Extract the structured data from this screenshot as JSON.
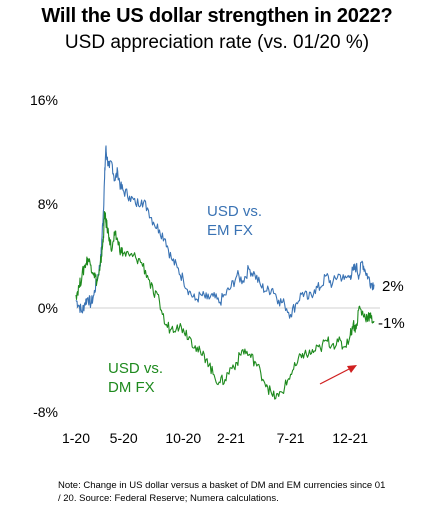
{
  "title": "Will the US dollar strengthen in 2022?",
  "subtitle": "USD appreciation rate (vs. 01/20 %)",
  "note": "Note: Change in US dollar versus a basket of DM and EM currencies since 01 / 20. Source: Federal Reserve; Numera calculations.",
  "chart_data": {
    "type": "line",
    "title": "Will the US dollar strengthen in 2022?",
    "subtitle": "USD appreciation rate (vs. 01/20 %)",
    "y_ticks": [
      "16%",
      "8%",
      "0%",
      "-8%"
    ],
    "y_tick_values": [
      16,
      8,
      0,
      -8
    ],
    "ylim": [
      -8,
      16
    ],
    "x_ticks": [
      "1-20",
      "5-20",
      "10-20",
      "2-21",
      "7-21",
      "12-21"
    ],
    "x_tick_months": [
      0,
      4,
      9,
      13,
      18,
      23
    ],
    "xlim_months": [
      0,
      25.5
    ],
    "grid": false,
    "zero_line": true,
    "series": [
      {
        "name": "USD vs. EM FX",
        "label_lines": [
          "USD vs.",
          "EM FX"
        ],
        "color": "#3a73b4",
        "end_label": "2%",
        "x": [
          0,
          0.25,
          0.5,
          0.75,
          1,
          1.25,
          1.5,
          1.75,
          2,
          2.1,
          2.2,
          2.3,
          2.4,
          2.5,
          2.6,
          2.8,
          3,
          3.25,
          3.5,
          3.75,
          4,
          4.5,
          5,
          5.5,
          6,
          6.5,
          7,
          7.5,
          8,
          8.5,
          9,
          9.5,
          10,
          10.5,
          11,
          11.5,
          12,
          12.5,
          13,
          13.5,
          14,
          14.5,
          15,
          15.5,
          16,
          16.5,
          17,
          17.5,
          18,
          18.5,
          19,
          19.5,
          20,
          20.5,
          21,
          21.5,
          22,
          22.5,
          23,
          23.25,
          23.5,
          23.75,
          24,
          24.25,
          24.5,
          24.75,
          25
        ],
        "y": [
          0.6,
          0.2,
          -0.3,
          0.4,
          0.8,
          0.3,
          1.0,
          2.2,
          3.2,
          4.0,
          5.8,
          7.5,
          10.0,
          12.3,
          11.5,
          10.8,
          11.2,
          9.8,
          10.5,
          9.3,
          9.0,
          8.6,
          8.0,
          8.3,
          7.7,
          6.6,
          6.0,
          5.3,
          3.8,
          3.1,
          2.2,
          1.3,
          0.6,
          1.0,
          0.7,
          0.9,
          0.4,
          1.0,
          1.6,
          2.5,
          2.1,
          3.0,
          2.6,
          1.7,
          1.3,
          1.5,
          0.6,
          0.3,
          -0.5,
          0.4,
          1.2,
          0.7,
          1.4,
          1.6,
          2.5,
          1.8,
          2.6,
          2.2,
          2.5,
          2.9,
          3.2,
          2.5,
          3.6,
          2.9,
          2.4,
          1.9,
          1.8
        ]
      },
      {
        "name": "USD vs. DM FX",
        "label_lines": [
          "USD vs.",
          "DM FX"
        ],
        "color": "#1e8a1e",
        "end_label": "-1%",
        "x": [
          0,
          0.25,
          0.5,
          0.75,
          1,
          1.25,
          1.5,
          1.75,
          2,
          2.1,
          2.2,
          2.3,
          2.4,
          2.5,
          2.6,
          2.8,
          3,
          3.25,
          3.5,
          3.75,
          4,
          4.5,
          5,
          5.5,
          6,
          6.5,
          7,
          7.5,
          8,
          8.5,
          9,
          9.5,
          10,
          10.5,
          11,
          11.5,
          12,
          12.5,
          13,
          13.5,
          14,
          14.5,
          15,
          15.5,
          16,
          16.5,
          17,
          17.5,
          18,
          18.5,
          19,
          19.5,
          20,
          20.5,
          21,
          21.5,
          22,
          22.5,
          23,
          23.25,
          23.5,
          23.75,
          24,
          24.25,
          24.5,
          24.75,
          25
        ],
        "y": [
          1.0,
          1.6,
          2.5,
          3.3,
          3.8,
          3.3,
          2.7,
          2.0,
          2.9,
          3.7,
          4.5,
          5.5,
          7.4,
          6.6,
          6.3,
          5.4,
          4.4,
          5.6,
          5.2,
          4.4,
          4.2,
          4.0,
          3.9,
          3.5,
          2.5,
          1.1,
          0.5,
          -1.3,
          -1.6,
          -1.3,
          -1.6,
          -2.2,
          -2.9,
          -3.6,
          -3.9,
          -5.1,
          -5.7,
          -5.5,
          -4.6,
          -4.2,
          -3.2,
          -3.6,
          -4.1,
          -5.0,
          -5.9,
          -6.8,
          -6.8,
          -6.1,
          -5.1,
          -4.4,
          -3.5,
          -3.6,
          -3.3,
          -3.1,
          -2.5,
          -2.8,
          -2.6,
          -3.0,
          -2.1,
          -1.2,
          -1.6,
          0.1,
          -0.4,
          -0.7,
          -0.6,
          -0.8,
          -1.0
        ]
      }
    ]
  }
}
